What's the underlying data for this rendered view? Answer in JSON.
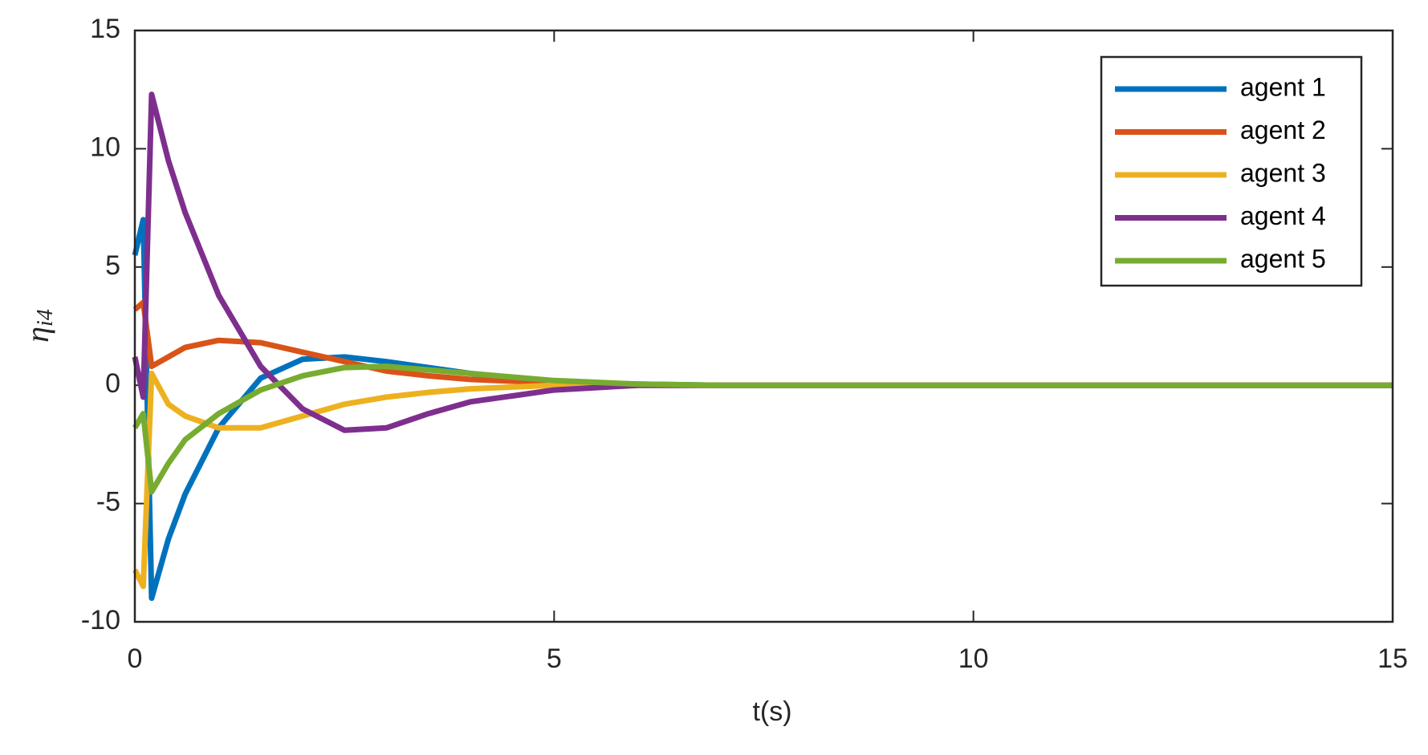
{
  "chart_data": {
    "type": "line",
    "xlabel": "t(s)",
    "ylabel": "η",
    "ylabel_subscript": "i4",
    "x": [
      0,
      0.1,
      0.2,
      0.4,
      0.6,
      1,
      1.5,
      2,
      2.5,
      3,
      3.5,
      4,
      5,
      6,
      7,
      10,
      15
    ],
    "series": [
      {
        "name": "agent 1",
        "color": "#0072bd",
        "values": [
          5.5,
          7,
          -9,
          -6.5,
          -4.6,
          -1.8,
          0.3,
          1.1,
          1.2,
          1.0,
          0.75,
          0.5,
          0.15,
          0.05,
          0,
          0,
          0
        ]
      },
      {
        "name": "agent 2",
        "color": "#d95319",
        "values": [
          3.2,
          3.5,
          0.8,
          1.2,
          1.6,
          1.9,
          1.8,
          1.4,
          1.0,
          0.6,
          0.4,
          0.25,
          0.1,
          0.02,
          0,
          0,
          0
        ]
      },
      {
        "name": "agent 3",
        "color": "#edb120",
        "values": [
          -7.8,
          -8.5,
          0.5,
          -0.8,
          -1.3,
          -1.8,
          -1.8,
          -1.3,
          -0.8,
          -0.5,
          -0.3,
          -0.15,
          0,
          0,
          0,
          0,
          0
        ]
      },
      {
        "name": "agent 4",
        "color": "#7e2f8e",
        "values": [
          1.2,
          -0.5,
          12.3,
          9.5,
          7.3,
          3.8,
          0.8,
          -1.0,
          -1.9,
          -1.8,
          -1.2,
          -0.7,
          -0.2,
          0,
          0,
          0,
          0
        ]
      },
      {
        "name": "agent 5",
        "color": "#77ac30",
        "values": [
          -1.8,
          -1.2,
          -4.5,
          -3.3,
          -2.3,
          -1.2,
          -0.2,
          0.4,
          0.75,
          0.8,
          0.65,
          0.5,
          0.2,
          0.05,
          0,
          0,
          0
        ]
      }
    ],
    "xlim": [
      0,
      15
    ],
    "xticks": [
      0,
      5,
      10,
      15
    ],
    "ylim": [
      -10,
      15
    ],
    "yticks": [
      -10,
      -5,
      0,
      5,
      10,
      15
    ],
    "grid": false,
    "legend": "top-right"
  }
}
